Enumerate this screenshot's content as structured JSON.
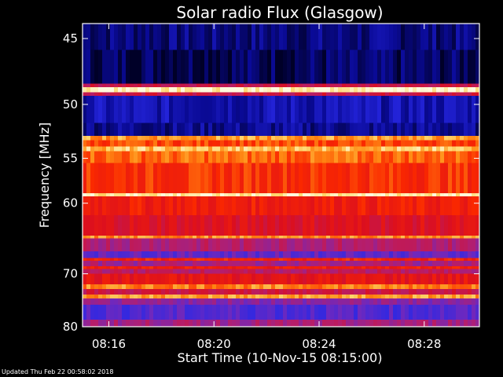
{
  "chart_data": {
    "type": "heatmap",
    "title": "Solar radio Flux (Glasgow)",
    "xlabel": "Start Time (10-Nov-15 08:15:00)",
    "ylabel": "Frequency [MHz]",
    "x_ticks": [
      "08:16",
      "08:20",
      "08:24",
      "08:28"
    ],
    "x_tick_minutes": [
      16,
      20,
      24,
      28
    ],
    "xlim_minutes": [
      15,
      30.1
    ],
    "y_ticks": [
      45,
      50,
      55,
      60,
      70,
      80
    ],
    "ylim": [
      44,
      80
    ],
    "y_scale": "reciprocal",
    "colormap": "dark blue - purple - red - orange - yellow",
    "background_level": 0.75,
    "bands": [
      {
        "f0": 44.0,
        "f1": 45.8,
        "level": 0.08
      },
      {
        "f0": 45.8,
        "f1": 48.3,
        "level": 0.05
      },
      {
        "f0": 48.3,
        "f1": 48.6,
        "level": 0.55
      },
      {
        "f0": 48.6,
        "f1": 49.0,
        "level": 1.0
      },
      {
        "f0": 49.0,
        "f1": 49.3,
        "level": 0.55
      },
      {
        "f0": 49.3,
        "f1": 51.6,
        "level": 0.14
      },
      {
        "f0": 51.6,
        "f1": 52.8,
        "level": 0.1
      },
      {
        "f0": 52.8,
        "f1": 53.2,
        "level": 0.88
      },
      {
        "f0": 53.2,
        "f1": 53.8,
        "level": 0.78
      },
      {
        "f0": 53.8,
        "f1": 54.3,
        "level": 0.92
      },
      {
        "f0": 54.3,
        "f1": 55.5,
        "level": 0.82
      },
      {
        "f0": 55.5,
        "f1": 58.8,
        "level": 0.75
      },
      {
        "f0": 58.8,
        "f1": 59.2,
        "level": 0.98
      },
      {
        "f0": 59.2,
        "f1": 61.5,
        "level": 0.7
      },
      {
        "f0": 61.5,
        "f1": 64.2,
        "level": 0.62
      },
      {
        "f0": 64.2,
        "f1": 64.6,
        "level": 0.86
      },
      {
        "f0": 64.6,
        "f1": 66.5,
        "level": 0.48
      },
      {
        "f0": 66.5,
        "f1": 67.5,
        "level": 0.33
      },
      {
        "f0": 67.5,
        "f1": 67.9,
        "level": 0.72
      },
      {
        "f0": 67.9,
        "f1": 68.8,
        "level": 0.45
      },
      {
        "f0": 68.8,
        "f1": 69.2,
        "level": 0.7
      },
      {
        "f0": 69.2,
        "f1": 70.0,
        "level": 0.5
      },
      {
        "f0": 70.0,
        "f1": 71.8,
        "level": 0.65
      },
      {
        "f0": 71.8,
        "f1": 72.6,
        "level": 0.85
      },
      {
        "f0": 72.6,
        "f1": 73.6,
        "level": 0.55
      },
      {
        "f0": 73.6,
        "f1": 74.3,
        "level": 0.88
      },
      {
        "f0": 74.3,
        "f1": 75.5,
        "level": 0.4
      },
      {
        "f0": 75.5,
        "f1": 78.5,
        "level": 0.3
      },
      {
        "f0": 78.5,
        "f1": 80.0,
        "level": 0.45
      }
    ]
  },
  "footer": {
    "updated": "Updated Thu Feb 22 00:58:02 2018"
  }
}
